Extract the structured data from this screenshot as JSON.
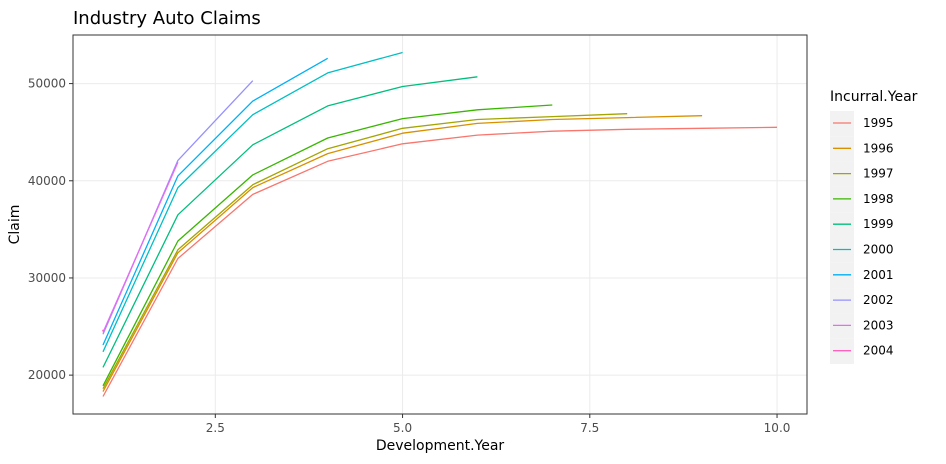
{
  "chart_data": {
    "type": "line",
    "title": "Industry Auto Claims",
    "xlabel": "Development.Year",
    "ylabel": "Claim",
    "xlim": [
      0.6,
      10.4
    ],
    "ylim": [
      16000,
      55000
    ],
    "x_ticks": [
      2.5,
      5.0,
      7.5,
      10.0
    ],
    "x_tick_labels": [
      "2.5",
      "5.0",
      "7.5",
      "10.0"
    ],
    "y_ticks": [
      20000,
      30000,
      40000,
      50000
    ],
    "y_tick_labels": [
      "20000",
      "30000",
      "40000",
      "50000"
    ],
    "grid": true,
    "legend": {
      "title": "Incurral.Year",
      "position": "right"
    },
    "series": [
      {
        "name": "1995",
        "color": "#F8766D",
        "x": [
          1,
          2,
          3,
          4,
          5,
          6,
          7,
          8,
          9,
          10
        ],
        "values": [
          17800,
          32000,
          38600,
          42000,
          43800,
          44700,
          45100,
          45300,
          45400,
          45500
        ]
      },
      {
        "name": "1996",
        "color": "#D89000",
        "x": [
          1,
          2,
          3,
          4,
          5,
          6,
          7,
          8,
          9
        ],
        "values": [
          18300,
          32600,
          39300,
          42800,
          44900,
          45900,
          46300,
          46500,
          46700
        ]
      },
      {
        "name": "1997",
        "color": "#A3A500",
        "x": [
          1,
          2,
          3,
          4,
          5,
          6,
          7,
          8
        ],
        "values": [
          18600,
          32900,
          39600,
          43300,
          45400,
          46300,
          46600,
          46900
        ]
      },
      {
        "name": "1998",
        "color": "#39B600",
        "x": [
          1,
          2,
          3,
          4,
          5,
          6,
          7
        ],
        "values": [
          18900,
          33800,
          40600,
          44400,
          46400,
          47300,
          47800
        ]
      },
      {
        "name": "1999",
        "color": "#00BF7D",
        "x": [
          1,
          2,
          3,
          4,
          5,
          6
        ],
        "values": [
          20800,
          36500,
          43700,
          47700,
          49700,
          50700
        ]
      },
      {
        "name": "2000",
        "color": "#00BFC4",
        "x": [
          1,
          2,
          3,
          4,
          5
        ],
        "values": [
          22400,
          39300,
          46800,
          51100,
          53200
        ]
      },
      {
        "name": "2001",
        "color": "#00B0F6",
        "x": [
          1,
          2,
          3,
          4
        ],
        "values": [
          23100,
          40500,
          48200,
          52600
        ]
      },
      {
        "name": "2002",
        "color": "#9590FF",
        "x": [
          1,
          2,
          3
        ],
        "values": [
          24200,
          42100,
          50300
        ]
      },
      {
        "name": "2003",
        "color": "#E76BF3",
        "x": [
          1,
          2
        ],
        "values": [
          24400,
          41900
        ]
      },
      {
        "name": "2004",
        "color": "#FF62BC",
        "x": [
          1
        ],
        "values": [
          24600
        ]
      }
    ]
  },
  "colors": {
    "panel_background": "#FFFFFF",
    "panel_border": "#333333",
    "gridline": "#EBEBEB",
    "legend_key_background": "#F2F2F2"
  }
}
